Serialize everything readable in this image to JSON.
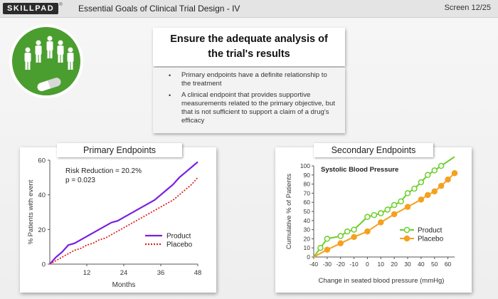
{
  "header": {
    "logo_text": "SKILLPAD",
    "logo_registered": "®",
    "title": "Essential Goals of Clinical Trial Design - IV",
    "screen": "Screen 12/25"
  },
  "headline": {
    "line1": "Ensure the adequate analysis of",
    "line2": "the trial's results"
  },
  "bullets": [
    "Primary endpoints have a definite relationship to the treatment",
    "A clinical endpoint that provides supportive measurements related to the primary objective, but that is not sufficient to support a claim of a drug's efficacy"
  ],
  "colors": {
    "badge_green": "#4a9e2f",
    "product_purple": "#7a1fe0",
    "placebo_red": "#e02020",
    "secondary_green": "#6ccf2a",
    "secondary_orange": "#f5a020"
  },
  "chart_data": [
    {
      "type": "line",
      "title": "Primary Endpoints",
      "xlabel": "Months",
      "ylabel": "% Patients with event",
      "xlim": [
        0,
        48
      ],
      "ylim": [
        0,
        60
      ],
      "xticks": [
        "12",
        "24",
        "36",
        "48"
      ],
      "yticks": [
        "0",
        "20",
        "40",
        "60"
      ],
      "annotations": [
        "Risk Reduction = 20.2%",
        "p = 0.023"
      ],
      "legend": "bottom-right",
      "series": [
        {
          "name": "Product",
          "color": "#7a1fe0",
          "style": "solid",
          "x": [
            0,
            2,
            4,
            6,
            8,
            10,
            12,
            14,
            16,
            18,
            20,
            22,
            24,
            26,
            28,
            30,
            32,
            34,
            36,
            38,
            40,
            42,
            44,
            46,
            48
          ],
          "y": [
            0,
            4,
            7,
            11,
            12,
            14,
            16,
            18,
            20,
            22,
            24,
            25,
            27,
            29,
            31,
            33,
            35,
            37,
            40,
            43,
            46,
            50,
            53,
            56,
            59
          ]
        },
        {
          "name": "Placebo",
          "color": "#e02020",
          "style": "dotted",
          "x": [
            0,
            2,
            4,
            6,
            8,
            10,
            12,
            14,
            16,
            18,
            20,
            22,
            24,
            26,
            28,
            30,
            32,
            34,
            36,
            38,
            40,
            42,
            44,
            46,
            48
          ],
          "y": [
            0,
            2,
            4,
            6,
            8,
            9,
            11,
            12,
            14,
            15,
            17,
            19,
            21,
            23,
            25,
            27,
            29,
            31,
            33,
            35,
            37,
            40,
            43,
            46,
            50
          ]
        }
      ]
    },
    {
      "type": "line",
      "title": "Secondary Endpoints",
      "subtitle": "Systolic Blood Pressure",
      "xlabel": "Change in seated blood pressure (mmHg)",
      "ylabel": "Cumulative % of Patients",
      "xlim": [
        -40,
        65
      ],
      "ylim": [
        0,
        100
      ],
      "xticks": [
        "-40",
        "-30",
        "-20",
        "-10",
        "0",
        "10",
        "20",
        "30",
        "40",
        "50",
        "60"
      ],
      "yticks": [
        "0",
        "10",
        "20",
        "30",
        "40",
        "50",
        "60",
        "70",
        "80",
        "90",
        "100"
      ],
      "legend": "right",
      "series": [
        {
          "name": "Product",
          "color": "#6ccf2a",
          "marker": "open-circle",
          "x": [
            -40,
            -35,
            -30,
            -20,
            -15,
            -10,
            0,
            5,
            10,
            15,
            20,
            25,
            30,
            35,
            40,
            45,
            50,
            55,
            60,
            65
          ],
          "y": [
            0,
            10,
            20,
            23,
            28,
            30,
            44,
            46,
            48,
            52,
            57,
            61,
            70,
            75,
            82,
            90,
            95,
            100,
            105,
            110
          ]
        },
        {
          "name": "Placebo",
          "color": "#f5a020",
          "marker": "filled-circle",
          "x": [
            -40,
            -30,
            -20,
            -10,
            0,
            10,
            20,
            30,
            40,
            45,
            50,
            55,
            60,
            65
          ],
          "y": [
            0,
            8,
            15,
            22,
            28,
            38,
            47,
            55,
            63,
            68,
            72,
            78,
            85,
            92
          ]
        }
      ]
    }
  ]
}
